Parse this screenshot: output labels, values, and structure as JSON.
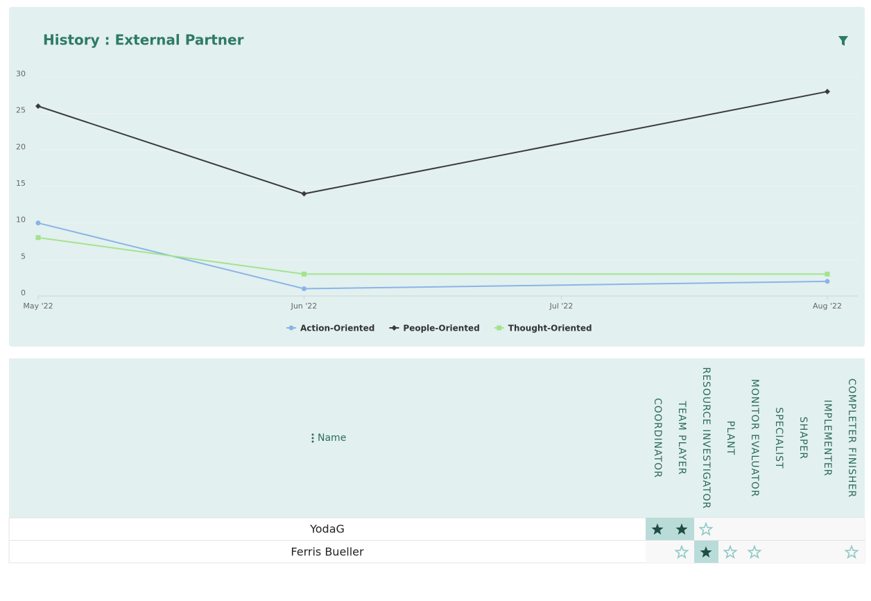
{
  "chart_data": {
    "type": "line",
    "title": "History  : External Partner",
    "x": [
      "2022-05",
      "2022-06",
      "2022-08"
    ],
    "xlim": [
      "2022-05",
      "2022-08"
    ],
    "xticks": [
      {
        "value": "2022-05",
        "label": "May '22"
      },
      {
        "value": "2022-06",
        "label": "Jun '22"
      },
      {
        "value": "2022-07",
        "label": "Jul '22"
      },
      {
        "value": "2022-08",
        "label": "Aug '22"
      }
    ],
    "ylim": [
      0,
      30
    ],
    "yticks": [
      0,
      5,
      10,
      15,
      20,
      25,
      30
    ],
    "grid": true,
    "legend": "bottom",
    "series": [
      {
        "name": "Action-Oriented",
        "color": "#8ab4e8",
        "marker": "circle",
        "values": [
          10,
          1,
          2
        ]
      },
      {
        "name": "People-Oriented",
        "color": "#3a3a3a",
        "marker": "diamond",
        "values": [
          26,
          14,
          28
        ]
      },
      {
        "name": "Thought-Oriented",
        "color": "#a3e38e",
        "marker": "square",
        "values": [
          8,
          3,
          3
        ]
      }
    ]
  },
  "table": {
    "name_header": "Name",
    "columns": [
      "COORDINATOR",
      "TEAM PLAYER",
      "RESOURCE INVESTIGATOR",
      "PLANT",
      "MONITOR EVALUATOR",
      "SPECIALIST",
      "SHAPER",
      "IMPLEMENTER",
      "COMPLETER FINISHER"
    ],
    "rows": [
      "YodaG",
      "Ferris Bueller"
    ]
  }
}
